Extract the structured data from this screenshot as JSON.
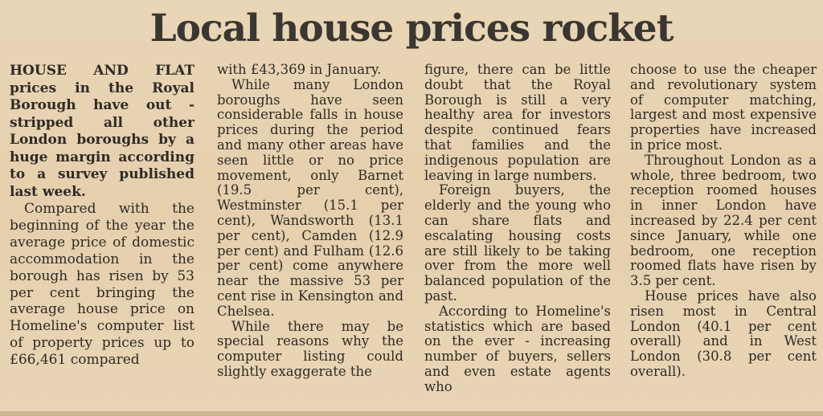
{
  "headline": "Local house prices rocket",
  "columns": {
    "col1": {
      "lead": "HOUSE AND FLAT prices in the Royal Borough have out - stripped all other London boroughs by a huge margin according to a survey published last week.",
      "p1": "Compared with the beginning of the year the average price of domestic accommodation in the borough has risen by 53 per cent bringing the average house price on Homeline's computer list of property prices up to £66,461 compared"
    },
    "col2": {
      "p1": "with £43,369 in January.",
      "p2": "While many London boroughs have seen considerable falls in house prices during the period and many other areas have seen little or no price movement, only Barnet (19.5 per cent), Westminster (15.1 per cent), Wandsworth (13.1 per cent), Camden (12.9 per cent) and Fulham (12.6 per cent) come anywhere near the massive 53 per cent rise in Kensington and Chelsea.",
      "p3": "While there may be special reasons why the computer listing could slightly exaggerate the"
    },
    "col3": {
      "p1": "figure, there can be little doubt that the Royal Borough is still a very healthy area for investors despite continued fears that families and the indigenous population are leaving in large numbers.",
      "p2": "Foreign buyers, the elderly and the young who can share flats and escalating housing costs are still likely to be taking over from the more well balanced population of the past.",
      "p3": "According to Homeline's statistics which are based on the ever - increasing number of buyers, sellers and even estate agents who"
    },
    "col4": {
      "p1": "choose to use the cheaper and revolutionary system of computer matching, largest and most expensive properties have increased in price most.",
      "p2": "Throughout London as a whole, three bedroom, two reception roomed houses in inner London have increased by 22.4 per cent since January, while one bedroom, one reception roomed flats have risen by 3.5 per cent.",
      "p3": "House prices have also risen most in Central London (40.1 per cent overall) and in West London (30.8 per cent overall)."
    }
  }
}
